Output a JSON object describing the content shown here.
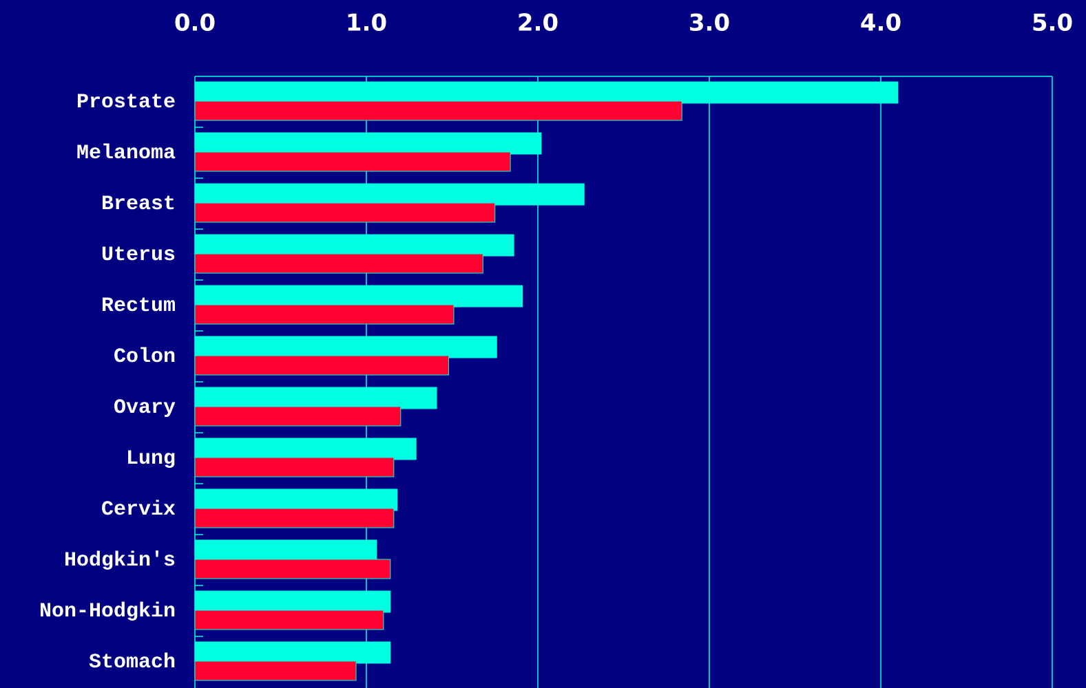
{
  "chart_data": {
    "type": "hbar",
    "categories": [
      "Prostate",
      "Melanoma",
      "Breast",
      "Uterus",
      "Rectum",
      "Colon",
      "Ovary",
      "Lung",
      "Cervix",
      "Hodgkin's",
      "Non-Hodgkin",
      "Stomach"
    ],
    "series": [
      {
        "color": "#00ffe0",
        "values": [
          4.1,
          2.02,
          2.27,
          1.86,
          1.91,
          1.76,
          1.41,
          1.29,
          1.18,
          1.06,
          1.14,
          1.14
        ]
      },
      {
        "color": "#ff0030",
        "values": [
          2.84,
          1.84,
          1.75,
          1.68,
          1.51,
          1.48,
          1.2,
          1.16,
          1.16,
          1.14,
          1.1,
          0.94
        ]
      }
    ],
    "xlim": [
      0,
      5
    ],
    "xticks": [
      {
        "value": 0,
        "label": "0.0"
      },
      {
        "value": 1,
        "label": "1.0"
      },
      {
        "value": 2,
        "label": "2.0"
      },
      {
        "value": 3,
        "label": "3.0"
      },
      {
        "value": 4,
        "label": "4.0"
      },
      {
        "value": 5,
        "label": "5.0"
      }
    ],
    "grid": true,
    "grid_color": "#00ffe0",
    "background": "#000080"
  }
}
